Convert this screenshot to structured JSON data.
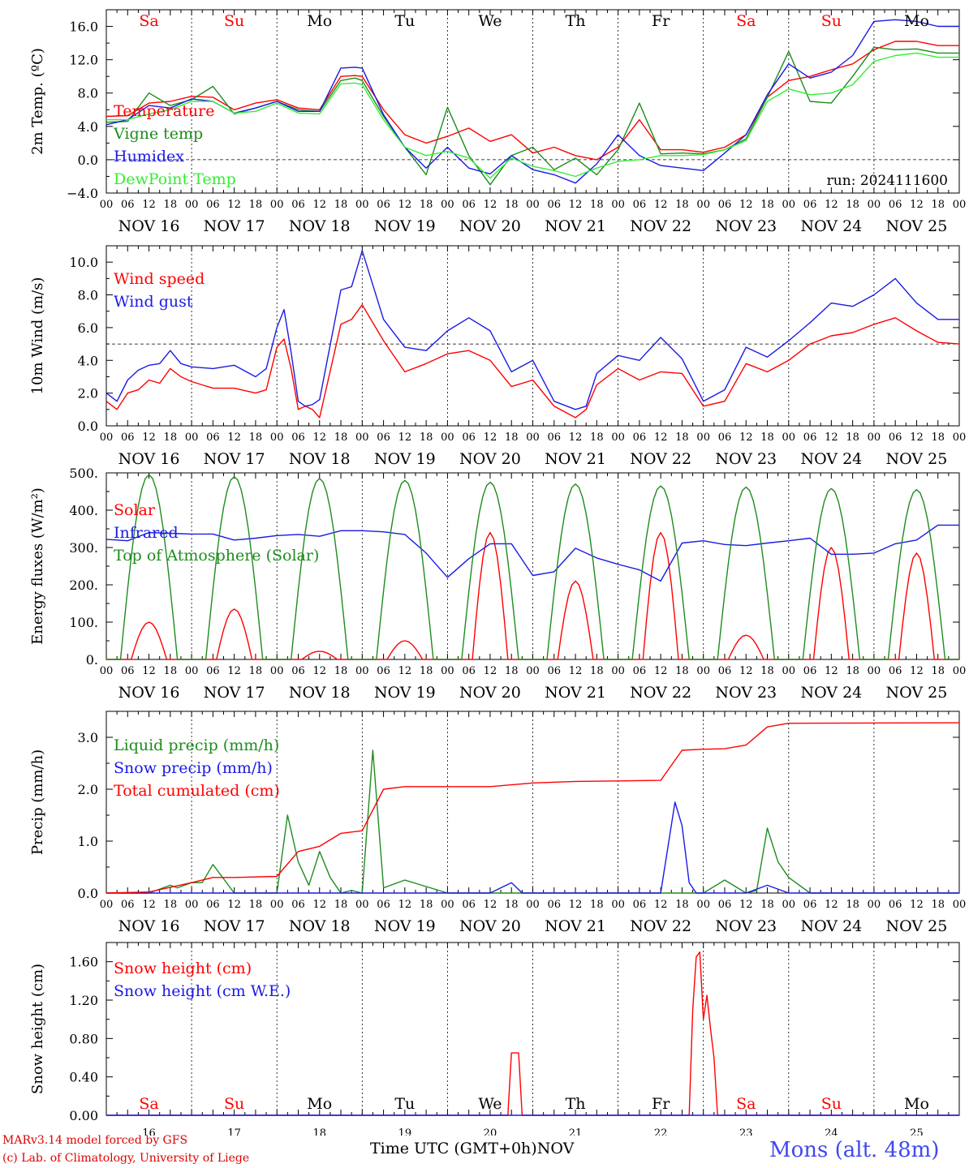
{
  "footer": {
    "model_credit": "MARv3.14 model forced by GFS",
    "institution_credit": "(c) Lab. of Climatology, University of Liege",
    "x_axis_title": "Time UTC (GMT+0h)",
    "x_axis_month": "NOV",
    "station": "Mons (alt. 48m)"
  },
  "run_label": "run: 2024111600",
  "colors": {
    "red": "#ff0000",
    "green": "#1e8c1e",
    "blue": "#1a1ae6",
    "lightgreen": "#33ee33",
    "weekend": "#ff0000",
    "weekday": "#000000"
  },
  "time_axis": {
    "hour_ticks": [
      "00",
      "06",
      "12",
      "18"
    ],
    "date_labels": [
      "NOV 16",
      "NOV 17",
      "NOV 18",
      "NOV 19",
      "NOV 20",
      "NOV 21",
      "NOV 22",
      "NOV 23",
      "NOV 24",
      "NOV 25"
    ],
    "day_numbers": [
      "16",
      "17",
      "18",
      "19",
      "20",
      "21",
      "22",
      "23",
      "24",
      "25"
    ],
    "weekdays": [
      "Sa",
      "Su",
      "Mo",
      "Tu",
      "We",
      "Th",
      "Fr",
      "Sa",
      "Su",
      "Mo"
    ],
    "weekend_flags": [
      true,
      true,
      false,
      false,
      false,
      false,
      false,
      true,
      true,
      false
    ],
    "x_unit": "hours since 2024-11-16 00 UTC",
    "x_range": [
      0,
      240
    ]
  },
  "chart_data": [
    {
      "type": "line",
      "ylabel": "2m Temp. (ºC)",
      "ylim": [
        -4,
        18
      ],
      "yticks": [
        -4,
        0,
        4,
        8,
        12,
        16
      ],
      "ytick_labels": [
        "−4.0",
        "0.0",
        "4.0",
        "8.0",
        "12.0",
        "16.0"
      ],
      "ref_line": 0,
      "grid": "daily vertical dotted",
      "series": [
        {
          "name": "Temperature",
          "color": "red",
          "x": [
            0,
            6,
            12,
            18,
            24,
            30,
            36,
            42,
            48,
            54,
            60,
            66,
            70,
            72,
            78,
            84,
            90,
            96,
            102,
            108,
            114,
            120,
            126,
            132,
            138,
            144,
            150,
            156,
            162,
            168,
            174,
            180,
            186,
            192,
            198,
            204,
            210,
            216,
            222,
            228,
            234,
            240
          ],
          "y": [
            5.2,
            5.3,
            6.8,
            7.0,
            7.6,
            7.5,
            6.0,
            6.8,
            7.2,
            6.2,
            6.0,
            10.0,
            10.1,
            10.0,
            6.0,
            3.0,
            2.0,
            2.8,
            3.8,
            2.2,
            3.0,
            0.8,
            1.5,
            0.5,
            0.0,
            1.5,
            4.8,
            1.2,
            1.2,
            0.9,
            1.5,
            3.0,
            7.5,
            9.5,
            10.0,
            10.8,
            11.5,
            13.2,
            14.2,
            14.2,
            13.7,
            13.7
          ]
        },
        {
          "name": "Vigne temp",
          "color": "green",
          "x": [
            0,
            6,
            12,
            18,
            24,
            30,
            36,
            42,
            48,
            54,
            60,
            66,
            70,
            72,
            78,
            84,
            90,
            96,
            102,
            108,
            114,
            120,
            126,
            132,
            138,
            144,
            150,
            156,
            162,
            168,
            174,
            180,
            186,
            192,
            198,
            204,
            210,
            216,
            222,
            228,
            234,
            240
          ],
          "y": [
            4.5,
            4.6,
            8.0,
            6.5,
            7.2,
            8.8,
            5.5,
            6.2,
            7.0,
            6.0,
            5.8,
            9.5,
            9.8,
            9.5,
            5.2,
            1.5,
            -1.8,
            6.3,
            0.5,
            -3.0,
            0.5,
            1.5,
            -1.2,
            0.2,
            -1.8,
            1.2,
            6.8,
            0.7,
            0.8,
            0.7,
            1.2,
            2.5,
            7.5,
            13.0,
            7.0,
            6.8,
            10.0,
            13.5,
            13.2,
            13.3,
            12.8,
            12.8
          ]
        },
        {
          "name": "Humidex",
          "color": "blue",
          "x": [
            0,
            6,
            12,
            18,
            24,
            30,
            36,
            42,
            48,
            54,
            60,
            66,
            70,
            72,
            78,
            84,
            90,
            96,
            102,
            108,
            114,
            120,
            126,
            132,
            138,
            144,
            150,
            156,
            162,
            168,
            174,
            180,
            186,
            192,
            198,
            204,
            210,
            216,
            222,
            228,
            234,
            240
          ],
          "y": [
            4.2,
            4.8,
            6.5,
            6.2,
            7.3,
            7.0,
            5.6,
            6.2,
            7.0,
            5.8,
            5.8,
            11.0,
            11.1,
            11.0,
            5.4,
            1.5,
            -1.0,
            1.5,
            -1.0,
            -1.7,
            0.5,
            -1.2,
            -1.8,
            -2.8,
            -0.5,
            3.0,
            0.5,
            -0.7,
            -1.0,
            -1.3,
            0.8,
            3.0,
            7.8,
            11.5,
            9.8,
            10.5,
            12.5,
            16.6,
            16.8,
            16.6,
            16.0,
            16.0
          ]
        },
        {
          "name": "DewPoint Temp",
          "color": "lightgreen",
          "x": [
            0,
            6,
            12,
            18,
            24,
            30,
            36,
            42,
            48,
            54,
            60,
            66,
            70,
            72,
            78,
            84,
            90,
            96,
            102,
            108,
            114,
            120,
            126,
            132,
            138,
            144,
            150,
            156,
            162,
            168,
            174,
            180,
            186,
            192,
            198,
            204,
            210,
            216,
            222,
            228,
            234,
            240
          ],
          "y": [
            4.8,
            4.8,
            5.5,
            6.0,
            7.0,
            7.0,
            5.6,
            5.8,
            6.8,
            5.6,
            5.5,
            9.1,
            9.2,
            9.0,
            4.8,
            1.5,
            0.5,
            1.0,
            0.2,
            -2.2,
            0.2,
            -0.8,
            -1.3,
            -2.0,
            -1.0,
            -0.2,
            0.0,
            0.5,
            0.5,
            0.6,
            1.2,
            2.3,
            7.0,
            8.5,
            7.8,
            8.0,
            9.0,
            11.8,
            12.5,
            12.8,
            12.3,
            12.3
          ]
        }
      ]
    },
    {
      "type": "line",
      "ylabel": "10m Wind (m/s)",
      "ylim": [
        0,
        11
      ],
      "yticks": [
        0,
        2,
        4,
        6,
        8,
        10
      ],
      "ytick_labels": [
        "0.0",
        "2.0",
        "4.0",
        "6.0",
        "8.0",
        "10.0"
      ],
      "ref_line": 5,
      "grid": "daily vertical dotted",
      "series": [
        {
          "name": "Wind speed",
          "color": "red",
          "x": [
            0,
            3,
            6,
            9,
            12,
            15,
            18,
            21,
            24,
            30,
            36,
            42,
            45,
            48,
            50,
            52,
            54,
            56,
            58,
            60,
            66,
            69,
            72,
            78,
            84,
            90,
            96,
            102,
            108,
            114,
            120,
            126,
            132,
            135,
            138,
            144,
            150,
            156,
            162,
            168,
            174,
            180,
            186,
            192,
            198,
            204,
            210,
            216,
            222,
            228,
            234,
            240
          ],
          "y": [
            1.5,
            1.0,
            2.0,
            2.2,
            2.8,
            2.6,
            3.5,
            3.0,
            2.7,
            2.3,
            2.3,
            2.0,
            2.2,
            4.8,
            5.3,
            3.5,
            1.0,
            1.2,
            1.0,
            0.5,
            6.2,
            6.5,
            7.4,
            5.2,
            3.3,
            3.8,
            4.4,
            4.6,
            4.0,
            2.4,
            2.8,
            1.2,
            0.5,
            1.0,
            2.5,
            3.5,
            2.8,
            3.3,
            3.2,
            1.2,
            1.5,
            3.8,
            3.3,
            4.0,
            5.0,
            5.5,
            5.7,
            6.2,
            6.6,
            5.8,
            5.1,
            5.0
          ]
        },
        {
          "name": "Wind gust",
          "color": "blue",
          "x": [
            0,
            3,
            6,
            9,
            12,
            15,
            18,
            21,
            24,
            30,
            36,
            42,
            45,
            48,
            50,
            52,
            54,
            56,
            58,
            60,
            66,
            69,
            72,
            78,
            84,
            90,
            96,
            102,
            108,
            114,
            120,
            126,
            132,
            135,
            138,
            144,
            150,
            156,
            162,
            168,
            174,
            180,
            186,
            192,
            198,
            204,
            210,
            216,
            222,
            228,
            234,
            240
          ],
          "y": [
            2.0,
            1.5,
            2.8,
            3.4,
            3.7,
            3.8,
            4.6,
            3.8,
            3.6,
            3.5,
            3.7,
            3.0,
            3.5,
            6.0,
            7.1,
            4.5,
            1.5,
            1.2,
            1.3,
            1.6,
            8.3,
            8.5,
            10.7,
            6.5,
            4.8,
            4.6,
            5.8,
            6.6,
            5.8,
            3.3,
            4.0,
            1.5,
            1.0,
            1.2,
            3.2,
            4.3,
            4.0,
            5.4,
            4.1,
            1.5,
            2.2,
            4.8,
            4.2,
            5.2,
            6.3,
            7.5,
            7.3,
            8.0,
            9.0,
            7.5,
            6.5,
            6.5
          ]
        }
      ]
    },
    {
      "type": "line",
      "ylabel": "Energy fluxes (W/m²)",
      "ylim": [
        0,
        500
      ],
      "yticks": [
        0,
        100,
        200,
        300,
        400,
        500
      ],
      "ytick_labels": [
        "0.",
        "100.",
        "200.",
        "300.",
        "400.",
        "500."
      ],
      "grid": "daily vertical dotted",
      "series": [
        {
          "name": "Solar",
          "color": "red",
          "daily_peaks": [
            100,
            135,
            22,
            50,
            340,
            210,
            340,
            65,
            300,
            285
          ]
        },
        {
          "name": "Infrared",
          "color": "blue",
          "x": [
            0,
            6,
            12,
            18,
            24,
            30,
            36,
            42,
            48,
            54,
            60,
            66,
            72,
            78,
            84,
            90,
            96,
            102,
            108,
            114,
            120,
            126,
            132,
            138,
            144,
            150,
            156,
            162,
            168,
            174,
            180,
            186,
            192,
            198,
            204,
            210,
            216,
            222,
            228,
            234,
            240
          ],
          "y": [
            322,
            318,
            340,
            338,
            336,
            336,
            320,
            325,
            332,
            335,
            330,
            345,
            345,
            342,
            335,
            285,
            220,
            270,
            310,
            310,
            225,
            235,
            298,
            272,
            255,
            240,
            210,
            312,
            318,
            308,
            305,
            312,
            318,
            325,
            282,
            282,
            285,
            310,
            320,
            360,
            360
          ]
        },
        {
          "name": "Top of Atmosphere (Solar)",
          "color": "green",
          "daily_peaks": [
            495,
            490,
            485,
            480,
            475,
            470,
            465,
            462,
            458,
            455
          ]
        }
      ]
    },
    {
      "type": "line",
      "ylabel": "Precip (mm/h)",
      "ylim": [
        0,
        3.5
      ],
      "yticks": [
        0,
        1,
        2,
        3
      ],
      "ytick_labels": [
        "0.0",
        "1.0",
        "2.0",
        "3.0"
      ],
      "grid": "daily vertical dotted",
      "series": [
        {
          "name": "Liquid precip (mm/h)",
          "color": "green",
          "x": [
            0,
            12,
            18,
            20,
            24,
            27,
            30,
            36,
            48,
            51,
            54,
            57,
            60,
            63,
            66,
            69,
            72,
            75,
            78,
            84,
            96,
            102,
            114,
            126,
            138,
            168,
            174,
            180,
            183,
            186,
            189,
            192,
            198,
            210,
            240
          ],
          "y": [
            0,
            0,
            0.15,
            0.1,
            0.2,
            0.2,
            0.55,
            0,
            0,
            1.5,
            0.6,
            0.15,
            0.8,
            0.3,
            0,
            0.05,
            0,
            2.75,
            0.1,
            0.25,
            0,
            0,
            0,
            0,
            0,
            0,
            0.25,
            0,
            0.05,
            1.25,
            0.6,
            0.3,
            0,
            0,
            0
          ]
        },
        {
          "name": "Snow precip (mm/h)",
          "color": "blue",
          "x": [
            0,
            108,
            114,
            117,
            120,
            156,
            160,
            162,
            164,
            166,
            168,
            180,
            186,
            192,
            240
          ],
          "y": [
            0,
            0,
            0.2,
            0,
            0,
            0,
            1.75,
            1.3,
            0.2,
            0,
            0,
            0,
            0.15,
            0,
            0
          ]
        },
        {
          "name": "Total cumulated (cm)",
          "color": "red",
          "x": [
            0,
            12,
            24,
            30,
            36,
            48,
            54,
            60,
            66,
            72,
            78,
            84,
            96,
            108,
            120,
            132,
            144,
            156,
            162,
            168,
            174,
            180,
            186,
            192,
            240
          ],
          "y": [
            0,
            0.02,
            0.2,
            0.3,
            0.3,
            0.32,
            0.8,
            0.9,
            1.15,
            1.2,
            2.0,
            2.05,
            2.05,
            2.05,
            2.12,
            2.15,
            2.16,
            2.17,
            2.75,
            2.77,
            2.78,
            2.85,
            3.2,
            3.27,
            3.28
          ]
        }
      ]
    },
    {
      "type": "line",
      "ylabel": "Snow height (cm)",
      "ylim": [
        0,
        1.8
      ],
      "yticks": [
        0,
        0.4,
        0.8,
        1.2,
        1.6
      ],
      "ytick_labels": [
        "0.00",
        "0.40",
        "0.80",
        "1.20",
        "1.60"
      ],
      "grid": "daily vertical dotted",
      "series": [
        {
          "name": "Snow height (cm)",
          "color": "red",
          "x": [
            0,
            113,
            114,
            115,
            116,
            117,
            164,
            165,
            166,
            167,
            168,
            169,
            170,
            171,
            172,
            240
          ],
          "y": [
            0,
            0,
            0.65,
            0.65,
            0.65,
            0,
            0,
            1.1,
            1.65,
            1.7,
            1.0,
            1.25,
            0.9,
            0.6,
            0,
            0
          ]
        },
        {
          "name": "Snow height (cm W.E.)",
          "color": "blue",
          "x": [
            0,
            240
          ],
          "y": [
            0,
            0
          ]
        }
      ]
    }
  ]
}
